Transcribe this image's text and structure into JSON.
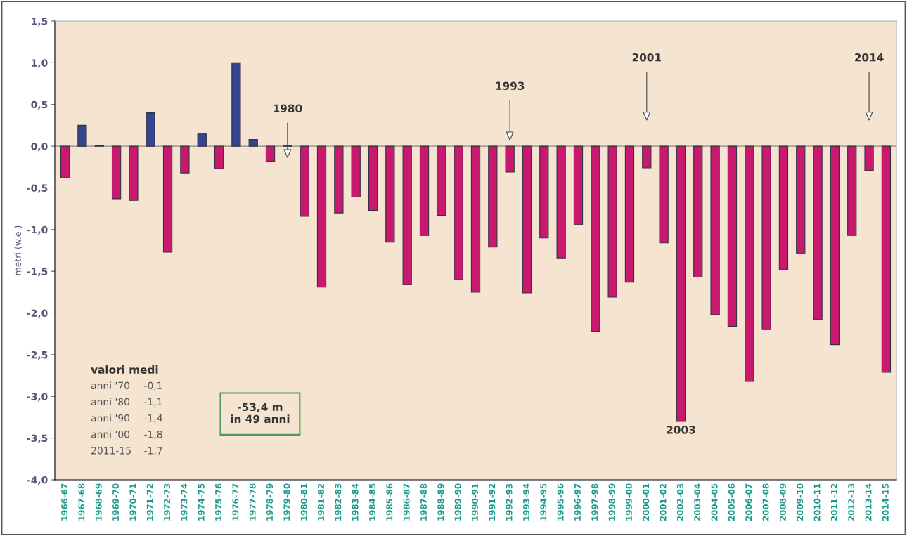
{
  "chart_data": {
    "type": "bar",
    "ylabel": "metri (w.e.)",
    "categories": [
      "1966-67",
      "1967-68",
      "1968-69",
      "1969-70",
      "1970-71",
      "1971-72",
      "1972-73",
      "1973-74",
      "1974-75",
      "1975-76",
      "1976-77",
      "1977-78",
      "1978-79",
      "1979-80",
      "1980-81",
      "1981-82",
      "1982-83",
      "1983-84",
      "1984-85",
      "1985-86",
      "1986-87",
      "1987-88",
      "1988-89",
      "1989-90",
      "1990-91",
      "1991-92",
      "1992-93",
      "1993-94",
      "1994-95",
      "1995-96",
      "1996-97",
      "1997-98",
      "1998-99",
      "1999-00",
      "2000-01",
      "2001-02",
      "2002-03",
      "2003-04",
      "2004-05",
      "2005-06",
      "2006-07",
      "2007-08",
      "2008-09",
      "2009-10",
      "2010-11",
      "2011-12",
      "2012-13",
      "2013-14",
      "2014-15"
    ],
    "values": [
      -0.38,
      0.25,
      0.01,
      -0.63,
      -0.65,
      0.4,
      -1.27,
      -0.32,
      0.15,
      -0.27,
      1.0,
      0.08,
      -0.18,
      0.01,
      -0.84,
      -1.69,
      -0.8,
      -0.61,
      -0.77,
      -1.15,
      -1.66,
      -1.07,
      -0.83,
      -1.6,
      -1.75,
      -1.21,
      -0.31,
      -1.76,
      -1.1,
      -1.34,
      -0.94,
      -2.22,
      -1.81,
      -1.63,
      -0.26,
      -1.16,
      -3.3,
      -1.57,
      -2.02,
      -2.16,
      -2.82,
      -2.2,
      -1.48,
      -1.29,
      -2.08,
      -2.38,
      -1.07,
      -0.29,
      -2.71
    ],
    "colors": [
      "#c8196f",
      "#34448f",
      "#34448f",
      "#c8196f",
      "#c8196f",
      "#34448f",
      "#c8196f",
      "#c8196f",
      "#34448f",
      "#c8196f",
      "#34448f",
      "#34448f",
      "#c8196f",
      "#34448f",
      "#c8196f",
      "#c8196f",
      "#c8196f",
      "#c8196f",
      "#c8196f",
      "#c8196f",
      "#c8196f",
      "#c8196f",
      "#c8196f",
      "#c8196f",
      "#c8196f",
      "#c8196f",
      "#c8196f",
      "#c8196f",
      "#c8196f",
      "#c8196f",
      "#c8196f",
      "#c8196f",
      "#c8196f",
      "#c8196f",
      "#c8196f",
      "#c8196f",
      "#c8196f",
      "#c8196f",
      "#c8196f",
      "#c8196f",
      "#c8196f",
      "#c8196f",
      "#c8196f",
      "#c8196f",
      "#c8196f",
      "#c8196f",
      "#c8196f",
      "#c8196f",
      "#c8196f"
    ],
    "ylim": [
      -4.0,
      1.5
    ],
    "yticks": [
      {
        "value": 1.5,
        "label": "1,5"
      },
      {
        "value": 1.0,
        "label": "1,0"
      },
      {
        "value": 0.5,
        "label": "0,5"
      },
      {
        "value": 0.0,
        "label": "0,0"
      },
      {
        "value": -0.5,
        "label": "-0,5"
      },
      {
        "value": -1.0,
        "label": "-1,0"
      },
      {
        "value": -1.5,
        "label": "-1,5"
      },
      {
        "value": -2.0,
        "label": "-2,0"
      },
      {
        "value": -2.5,
        "label": "-2,5"
      },
      {
        "value": -3.0,
        "label": "-3,0"
      },
      {
        "value": -3.5,
        "label": "-3,5"
      },
      {
        "value": -4.0,
        "label": "-4,0"
      }
    ],
    "annotations": [
      "1980",
      "1993",
      "2001",
      "2014",
      {
        "text": "2003",
        "x": "2002-03",
        "y": -3.3
      },
      "valori medi",
      "anni '70",
      "-0,1",
      "anni '80",
      "-1,1",
      "anni '90",
      "-1,4",
      "anni '00",
      "-1,8",
      "2011-15",
      "-1,7",
      "-53,4 m\nin 49 anni"
    ],
    "ref_lines": [
      {
        "axis": "y",
        "value": 0.0,
        "color": "#888888"
      }
    ],
    "grid": false
  }
}
